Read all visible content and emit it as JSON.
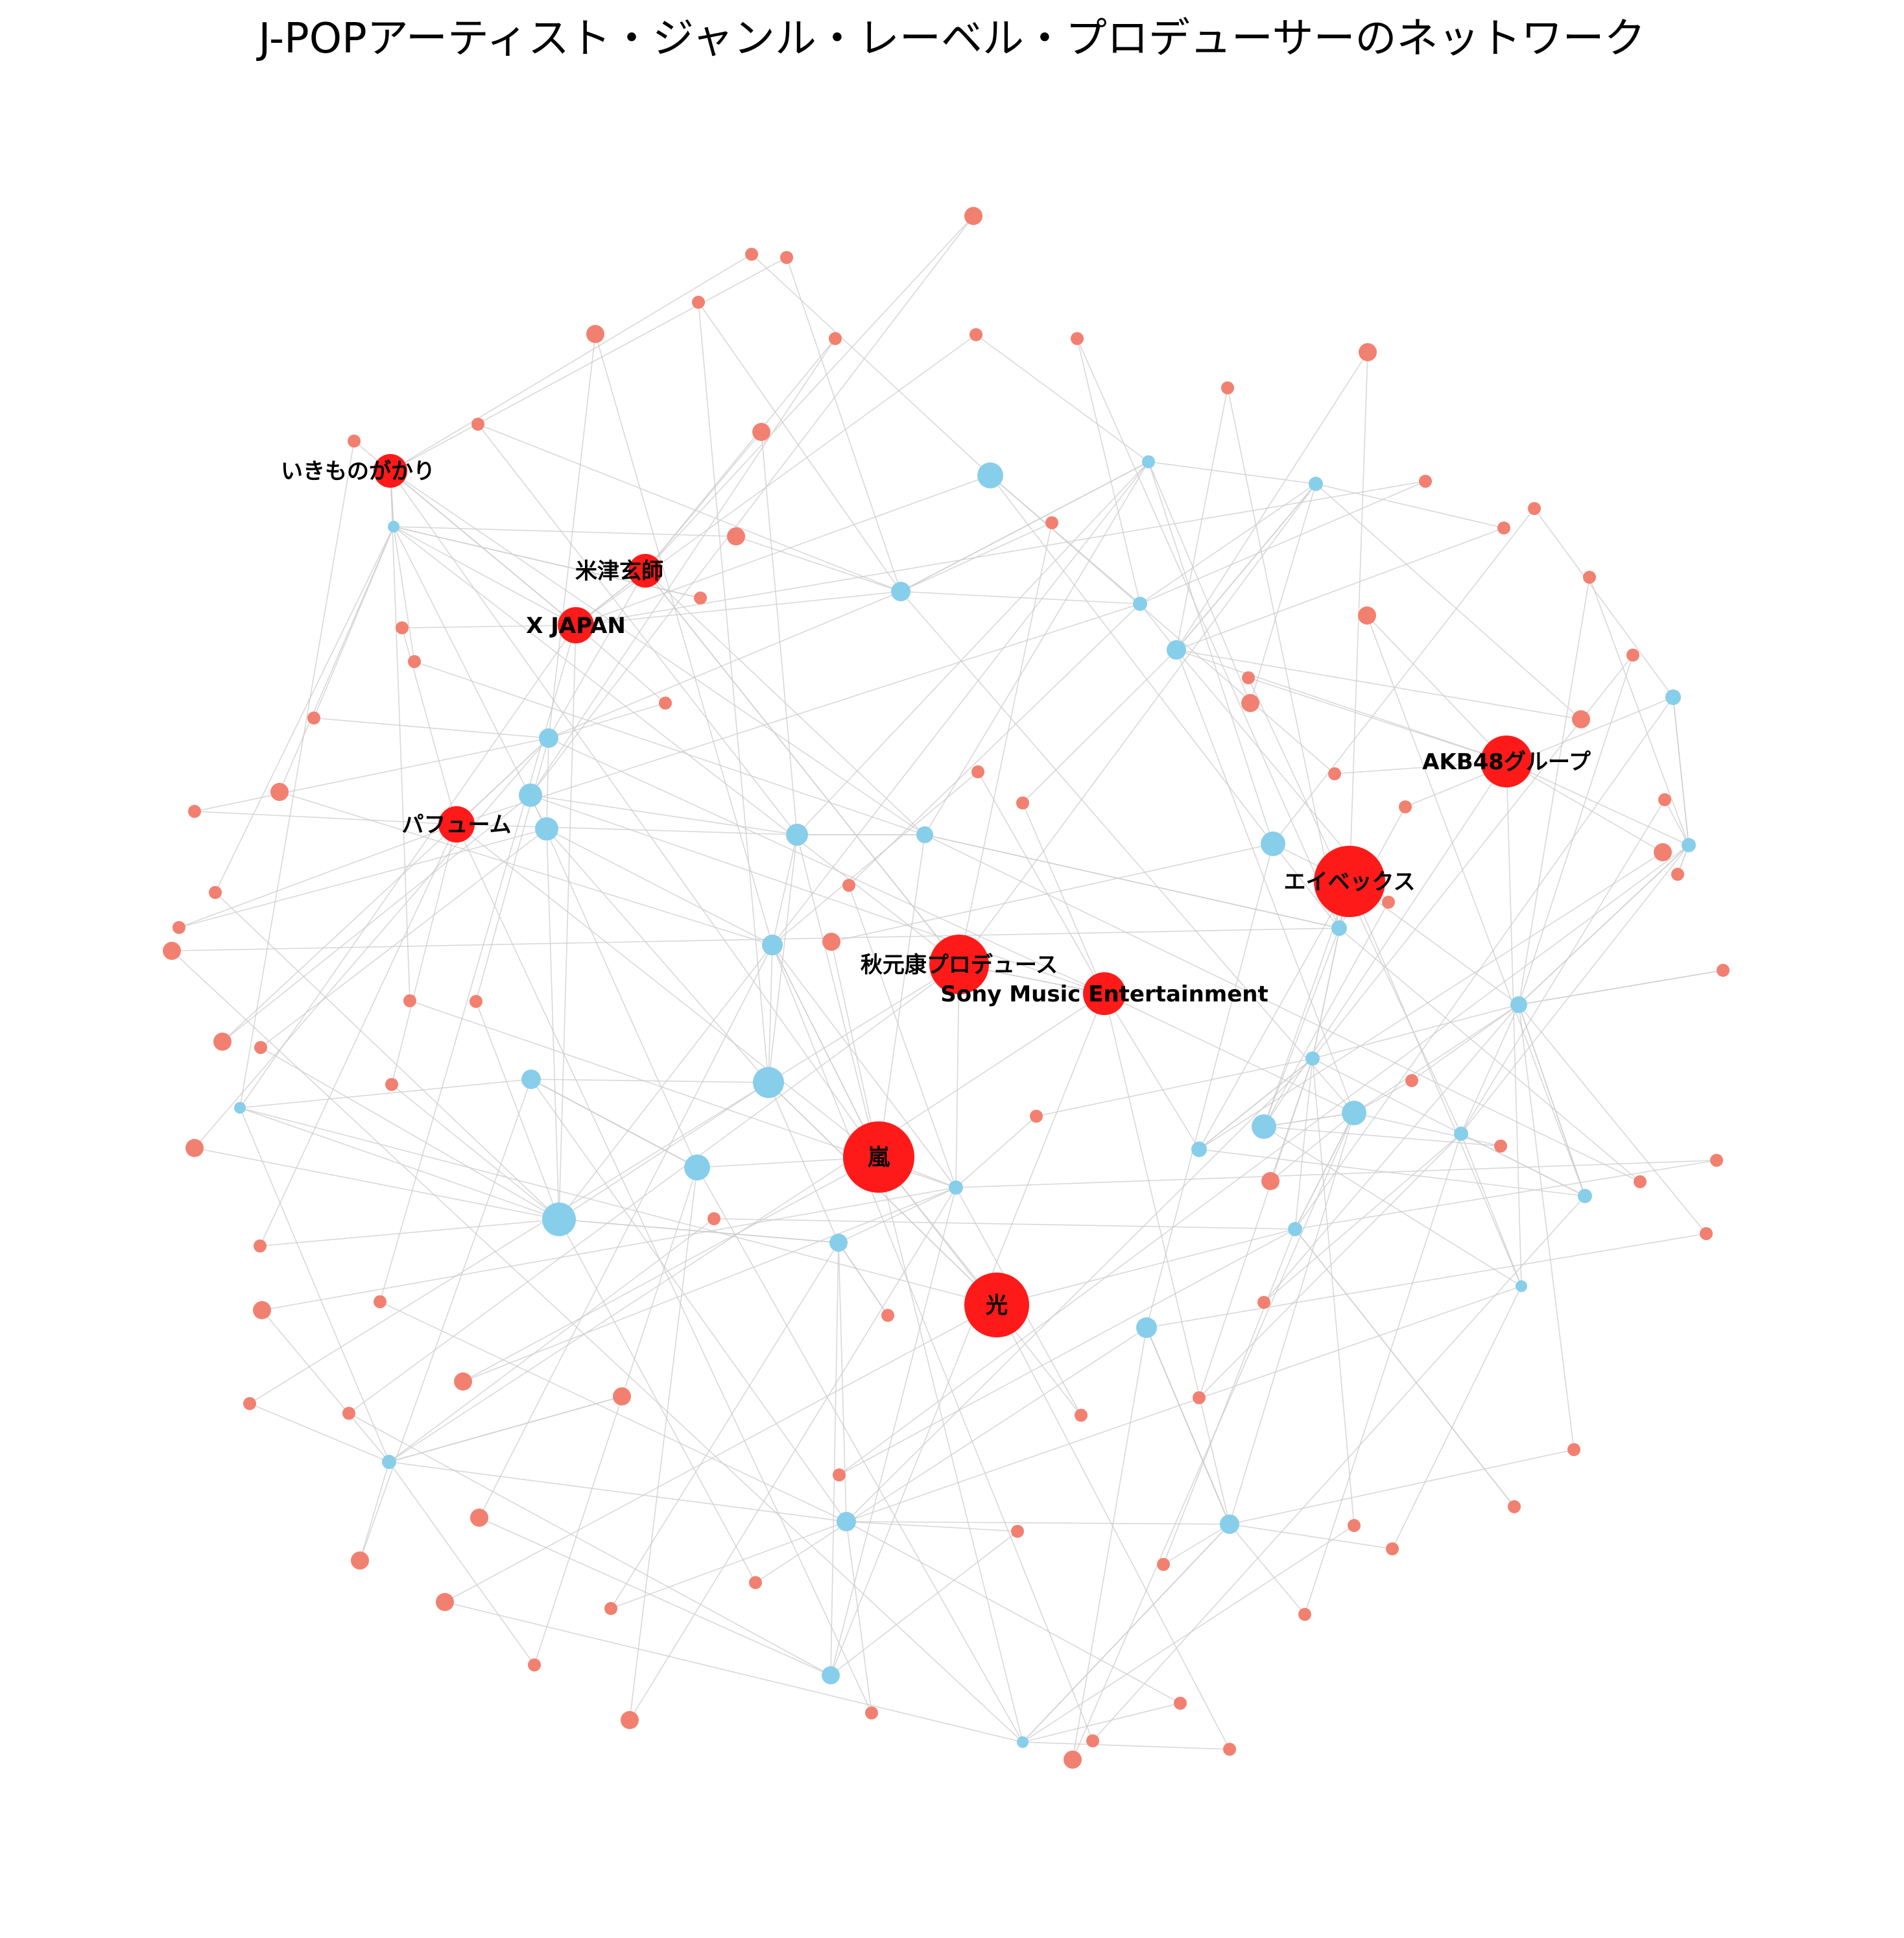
{
  "title": "J-POPアーティスト・ジャンル・レーベル・プロデューサーのネットワーク",
  "colors": {
    "highlight": "#ff1a1a",
    "minor": "#f28070",
    "hub": "#87ceeb",
    "edge": "#cccccc"
  },
  "highlighted_nodes": [
    {
      "id": "n_ikimonogakari",
      "label": "いきものがかり"
    },
    {
      "id": "n_kenshi",
      "label": "米津玄師"
    },
    {
      "id": "n_xjapan",
      "label": "X JAPAN"
    },
    {
      "id": "n_perfume",
      "label": "パフューム"
    },
    {
      "id": "n_akb48",
      "label": "AKB48グループ"
    },
    {
      "id": "n_avex",
      "label": "エイベックス"
    },
    {
      "id": "n_yasushi",
      "label": "秋元康プロデュース"
    },
    {
      "id": "n_sony",
      "label": "Sony Music Entertainment"
    },
    {
      "id": "n_arashi",
      "label": "嵐"
    },
    {
      "id": "n_hikaru",
      "label": "光"
    }
  ]
}
